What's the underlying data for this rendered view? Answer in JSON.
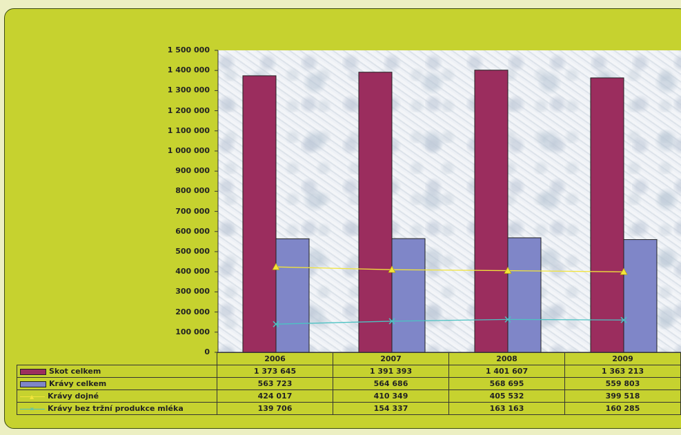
{
  "chart_data": {
    "type": "bar",
    "categories": [
      "2006",
      "2007",
      "2008",
      "2009"
    ],
    "ylim": [
      0,
      1500000
    ],
    "yticks": [
      "0",
      "100 000",
      "200 000",
      "300 000",
      "400 000",
      "500 000",
      "600 000",
      "700 000",
      "800 000",
      "900 000",
      "1 000 000",
      "1 100 000",
      "1 200 000",
      "1 300 000",
      "1 400 000",
      "1 500 000"
    ],
    "series": [
      {
        "name": "Skot celkem",
        "type": "bar",
        "color": "#9b2d5e",
        "values": [
          1373645,
          1391393,
          1401607,
          1363213
        ],
        "labels": [
          "1 373 645",
          "1 391 393",
          "1 401 607",
          "1 363 213"
        ]
      },
      {
        "name": "Krávy celkem",
        "type": "bar",
        "color": "#7f86c8",
        "values": [
          563723,
          564686,
          568695,
          559803
        ],
        "labels": [
          "563 723",
          "564 686",
          "568 695",
          "559 803"
        ]
      },
      {
        "name": "Krávy dojné",
        "type": "line",
        "marker": "triangle",
        "color": "#f2e43a",
        "values": [
          424017,
          410349,
          405532,
          399518
        ],
        "labels": [
          "424 017",
          "410 349",
          "405 532",
          "399 518"
        ]
      },
      {
        "name": "Krávy bez tržní produkce mléka",
        "type": "line",
        "marker": "x",
        "color": "#4cc3c3",
        "values": [
          139706,
          154337,
          163163,
          160285
        ],
        "labels": [
          "139 706",
          "154 337",
          "163 163",
          "160 285"
        ]
      }
    ],
    "grid": false,
    "legend": "table"
  }
}
